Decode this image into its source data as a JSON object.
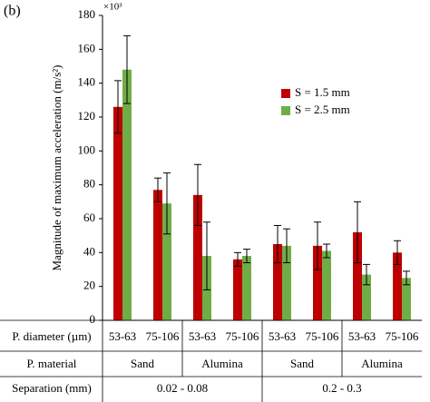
{
  "chart_data": {
    "type": "bar",
    "panel_label": "(b)",
    "multiplier": "×10³",
    "y_label": "Magnitude of maximum acceleration (m/s²)",
    "categories": [
      "53-63",
      "75-106",
      "53-63",
      "75-106",
      "53-63",
      "75-106",
      "53-63",
      "75-106"
    ],
    "materials": [
      "Sand",
      "Alumina",
      "Sand",
      "Alumina"
    ],
    "separations": [
      "0.02 - 0.08",
      "0.2 - 0.3"
    ],
    "row_labels": [
      "P. diameter (µm)",
      "P. material",
      "Separation (mm)"
    ],
    "series": [
      {
        "name": "S = 1.5 mm",
        "color": "#c00000",
        "values": [
          126,
          77,
          74,
          36,
          45,
          44,
          52,
          40
        ],
        "errors": [
          15.5,
          7,
          18,
          4,
          11,
          14,
          18,
          7
        ]
      },
      {
        "name": "S = 2.5 mm",
        "color": "#70ad47",
        "values": [
          148,
          69,
          38,
          38,
          44,
          41,
          27,
          25
        ],
        "errors": [
          20,
          18,
          20,
          4,
          10,
          4,
          6,
          4
        ]
      }
    ],
    "ylim": [
      0,
      180
    ],
    "yticks": [
      0,
      20,
      40,
      60,
      80,
      100,
      120,
      140,
      160,
      180
    ],
    "legend": "upper right",
    "grid": false
  }
}
